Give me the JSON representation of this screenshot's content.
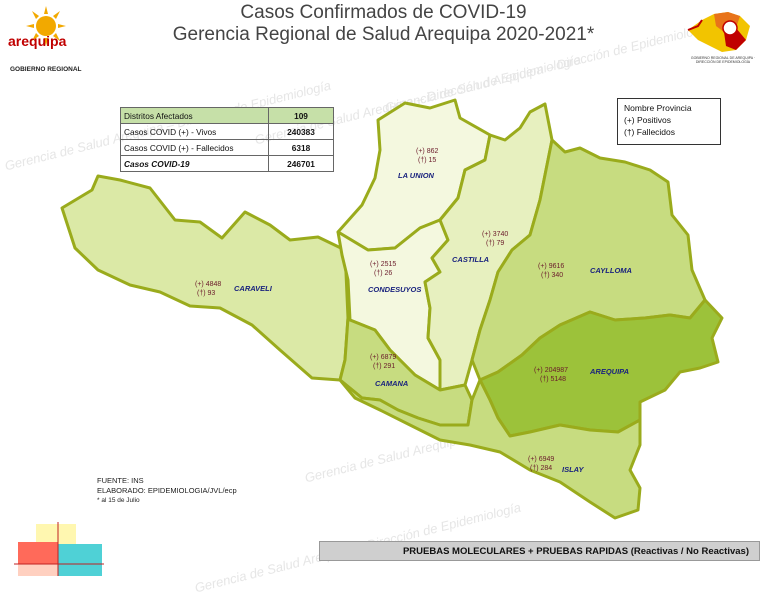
{
  "header": {
    "title": "Casos Confirmados de COVID-19",
    "subtitle": "Gerencia Regional de Salud Arequipa 2020-2021*"
  },
  "logo_left": {
    "wordmark": "arequipa",
    "caption": "GOBIERNO REGIONAL"
  },
  "logo_right": {
    "caption": "GOBIERNO REGIONAL DE AREQUIPA · DIRECCIÓN DE EPIDEMIOLOGÍA"
  },
  "watermark_text": "Gerencia de Salud Arequipa – Dirección de Epidemiología",
  "summary": {
    "rows": [
      {
        "label": "Distritos Afectados",
        "value": "109"
      },
      {
        "label": "Casos COVID (+) - Vivos",
        "value": "240383"
      },
      {
        "label": "Casos COVID (+) - Fallecidos",
        "value": "6318"
      },
      {
        "label": "Casos COVID-19",
        "value": "246701"
      }
    ]
  },
  "legend": {
    "title": "Nombre Provincia",
    "positive": "(+)  Positivos",
    "deceased": "(†)  Fallecidos"
  },
  "provinces": [
    {
      "name": "LA UNION",
      "positives": "(+) 862",
      "deceased": "(†) 15",
      "fill": "#f4f8df"
    },
    {
      "name": "CARAVELI",
      "positives": "(+) 4848",
      "deceased": "(†) 93",
      "fill": "#dbe9a6"
    },
    {
      "name": "CONDESUYOS",
      "positives": "(+) 2515",
      "deceased": "(†) 26",
      "fill": "#f4f8df"
    },
    {
      "name": "CASTILLA",
      "positives": "(+) 3740",
      "deceased": "(†) 79",
      "fill": "#e7f0bf"
    },
    {
      "name": "CAYLLOMA",
      "positives": "(+) 9616",
      "deceased": "(†) 340",
      "fill": "#c7dc80"
    },
    {
      "name": "CAMANA",
      "positives": "(+) 6879",
      "deceased": "(†) 291",
      "fill": "#c7dc80"
    },
    {
      "name": "AREQUIPA",
      "positives": "(+) 204987",
      "deceased": "(†) 5148",
      "fill": "#9cc23a"
    },
    {
      "name": "ISLAY",
      "positives": "(+) 6949",
      "deceased": "(†) 284",
      "fill": "#c7dc80"
    }
  ],
  "source": {
    "line1": "FUENTE: INS",
    "line2": "ELABORADO: EPIDEMIOLOGIA/JVL/ecp",
    "line3": "* al 15 de Julio"
  },
  "footer_bar": "PRUEBAS MOLECULARES + PRUEBAS RAPIDAS (Reactivas / No Reactivas)",
  "colors": {
    "border": "#9aab1c",
    "accent": "#c00000",
    "logo_sun": "#f2a900"
  }
}
